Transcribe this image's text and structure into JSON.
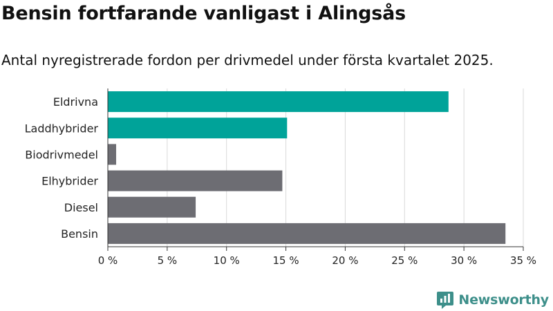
{
  "title": "Bensin fortfarande vanligast i Alingsås",
  "subtitle": "Antal nyregistrerade fordon per drivmedel under första kvartalet 2025.",
  "brand": "Newsworthy",
  "colors": {
    "highlight": "#00a399",
    "default": "#6d6d73",
    "grid": "#d9d9d9",
    "brand": "#3d8f8a"
  },
  "chart_data": {
    "type": "bar",
    "orientation": "horizontal",
    "categories": [
      "Eldrivna",
      "Laddhybrider",
      "Biodrivmedel",
      "Elhybrider",
      "Diesel",
      "Bensin"
    ],
    "values": [
      28.7,
      15.1,
      0.7,
      14.7,
      7.4,
      33.5
    ],
    "bar_colors": [
      "#00a399",
      "#00a399",
      "#6d6d73",
      "#6d6d73",
      "#6d6d73",
      "#6d6d73"
    ],
    "xlim": [
      0,
      35
    ],
    "xticks": [
      0,
      5,
      10,
      15,
      20,
      25,
      30,
      35
    ],
    "xtick_labels": [
      "0 %",
      "5 %",
      "10 %",
      "15 %",
      "20 %",
      "25 %",
      "30 %",
      "35 %"
    ],
    "grid": true
  }
}
